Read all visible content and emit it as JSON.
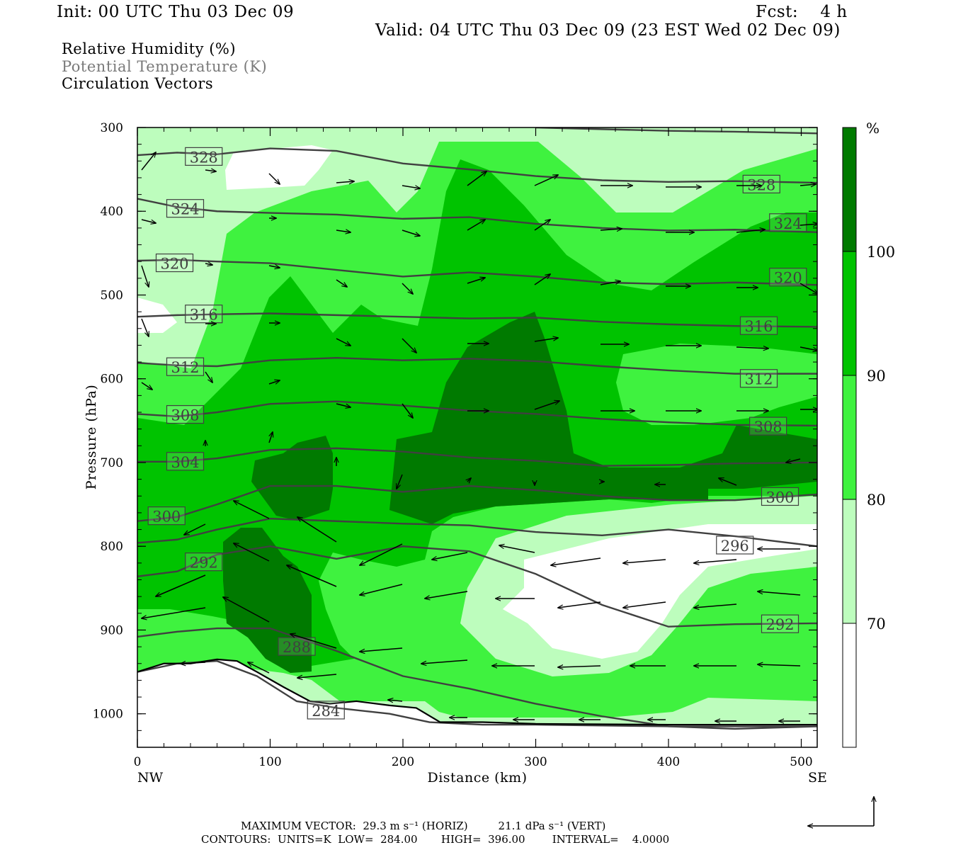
{
  "header": {
    "init": "Init: 00 UTC Thu 03 Dec 09",
    "fcst": "Fcst:    4 h",
    "valid": "Valid: 04 UTC Thu 03 Dec 09 (23 EST Wed 02 Dec 09)"
  },
  "legend": {
    "rh": "Relative Humidity (%)",
    "theta": "Potential Temperature (K)",
    "vectors": "Circulation Vectors"
  },
  "colors": {
    "rh_lt70": "#ffffff",
    "rh_70_80": "#bdfdbd",
    "rh_80_90": "#3ff23f",
    "rh_90_100": "#00c300",
    "rh_ge100": "#007a00",
    "theta_line": "#404040"
  },
  "chart_data": {
    "type": "cross-section",
    "xlabel": "Distance (km)",
    "ylabel": "Pressure (hPa)",
    "xlim": [
      0,
      512
    ],
    "ylim": [
      1040,
      300
    ],
    "x_ticks": [
      "0",
      "100",
      "200",
      "300",
      "400",
      "500"
    ],
    "y_ticks": [
      "300",
      "400",
      "500",
      "600",
      "700",
      "800",
      "900",
      "1000"
    ],
    "x_end_left": "NW",
    "x_end_right": "SE",
    "colorbar": {
      "unit": "%",
      "levels": [
        "70",
        "80",
        "90",
        "100"
      ]
    },
    "theta_contours": [
      {
        "label": "328",
        "x": [
          0,
          30,
          60,
          100,
          150,
          200,
          250,
          300,
          350,
          400,
          450,
          512
        ],
        "p": [
          333,
          330,
          332,
          325,
          328,
          343,
          350,
          358,
          363,
          365,
          364,
          366
        ],
        "label_at": [
          50,
          335
        ]
      },
      {
        "label": "328",
        "x": [
          300,
          350,
          400,
          450,
          512
        ],
        "p": [
          300,
          302,
          304,
          305,
          307
        ],
        "label_at": [
          470,
          368
        ]
      },
      {
        "label": "324",
        "x": [
          0,
          30,
          60,
          100,
          150,
          200,
          250,
          300,
          350,
          400,
          450,
          512
        ],
        "p": [
          385,
          395,
          400,
          402,
          404,
          409,
          407,
          415,
          420,
          423,
          422,
          425
        ],
        "label_at": [
          36,
          397
        ]
      },
      {
        "label": "324",
        "x": [],
        "p": [],
        "label_at": [
          490,
          414
        ]
      },
      {
        "label": "320",
        "x": [
          0,
          30,
          60,
          100,
          150,
          200,
          250,
          300,
          350,
          400,
          450,
          512
        ],
        "p": [
          459,
          458,
          460,
          462,
          470,
          478,
          473,
          478,
          485,
          487,
          485,
          488
        ],
        "label_at": [
          28,
          462
        ]
      },
      {
        "label": "320",
        "x": [],
        "p": [],
        "label_at": [
          490,
          479
        ]
      },
      {
        "label": "316",
        "x": [
          0,
          30,
          60,
          100,
          150,
          200,
          250,
          300,
          350,
          400,
          450,
          512
        ],
        "p": [
          526,
          524,
          523,
          522,
          524,
          526,
          528,
          527,
          532,
          535,
          537,
          538
        ],
        "label_at": [
          50,
          523
        ]
      },
      {
        "label": "316",
        "x": [],
        "p": [],
        "label_at": [
          468,
          537
        ]
      },
      {
        "label": "312",
        "x": [
          0,
          30,
          60,
          100,
          150,
          200,
          250,
          300,
          350,
          400,
          450,
          512
        ],
        "p": [
          581,
          584,
          585,
          578,
          575,
          578,
          576,
          579,
          585,
          590,
          594,
          594
        ],
        "label_at": [
          36,
          586
        ]
      },
      {
        "label": "312",
        "x": [],
        "p": [],
        "label_at": [
          468,
          600
        ]
      },
      {
        "label": "308",
        "x": [
          0,
          30,
          60,
          100,
          150,
          200,
          250,
          300,
          350,
          400,
          450,
          512
        ],
        "p": [
          642,
          645,
          640,
          630,
          627,
          632,
          638,
          642,
          648,
          652,
          655,
          656
        ],
        "label_at": [
          36,
          643
        ]
      },
      {
        "label": "308",
        "x": [],
        "p": [],
        "label_at": [
          475,
          657
        ]
      },
      {
        "label": "304",
        "x": [
          0,
          30,
          60,
          100,
          150,
          200,
          250,
          300,
          350,
          400,
          450,
          512
        ],
        "p": [
          699,
          699,
          695,
          685,
          683,
          687,
          694,
          698,
          704,
          703,
          701,
          700
        ],
        "label_at": [
          36,
          699
        ]
      },
      {
        "label": "300",
        "x": [
          0,
          30,
          60,
          100,
          150,
          200,
          250,
          300,
          350,
          400,
          450,
          512
        ],
        "p": [
          770,
          765,
          750,
          728,
          728,
          735,
          728,
          733,
          740,
          745,
          745,
          738
        ],
        "label_at": [
          22,
          764
        ]
      },
      {
        "label": "300",
        "x": [],
        "p": [],
        "label_at": [
          484,
          741
        ]
      },
      {
        "label": "296",
        "x": [
          0,
          30,
          60,
          100,
          150,
          200,
          250,
          300,
          350,
          400,
          450,
          512
        ],
        "p": [
          796,
          792,
          780,
          767,
          770,
          773,
          775,
          783,
          787,
          780,
          788,
          800
        ],
        "label_at": [
          450,
          799
        ]
      },
      {
        "label": "292",
        "x": [
          0,
          30,
          60,
          100,
          150,
          200,
          250,
          300,
          350,
          400,
          450,
          512
        ],
        "p": [
          836,
          830,
          810,
          800,
          815,
          800,
          806,
          833,
          870,
          896,
          893,
          892
        ],
        "label_at": [
          50,
          819
        ]
      },
      {
        "label": "292",
        "x": [],
        "p": [],
        "label_at": [
          484,
          893
        ]
      },
      {
        "label": "288",
        "x": [
          0,
          30,
          60,
          100,
          150,
          200,
          250,
          300,
          350,
          400,
          450,
          512
        ],
        "p": [
          908,
          902,
          898,
          898,
          925,
          955,
          970,
          988,
          1003,
          1015,
          1018,
          1015
        ],
        "label_at": [
          120,
          920
        ]
      },
      {
        "label": "284",
        "x": [
          0,
          30,
          60,
          90,
          120,
          150,
          190,
          220,
          260,
          300,
          400,
          512
        ],
        "p": [
          950,
          940,
          937,
          955,
          985,
          993,
          1000,
          1010,
          1013,
          1013,
          1015,
          1015
        ],
        "label_at": [
          142,
          996
        ]
      }
    ],
    "terrain_p": [
      [
        0,
        950
      ],
      [
        20,
        940
      ],
      [
        40,
        940
      ],
      [
        60,
        935
      ],
      [
        75,
        937
      ],
      [
        90,
        950
      ],
      [
        110,
        968
      ],
      [
        130,
        985
      ],
      [
        145,
        988
      ],
      [
        165,
        985
      ],
      [
        190,
        990
      ],
      [
        210,
        993
      ],
      [
        228,
        1010
      ],
      [
        260,
        1010
      ],
      [
        300,
        1012
      ],
      [
        400,
        1013
      ],
      [
        512,
        1013
      ]
    ],
    "maximum_vector": "MAXIMUM VECTOR:  29.3 m s⁻¹ (HORIZ)         21.1 dPa s⁻¹ (VERT)",
    "contours_note": "CONTOURS:  UNITS=K  LOW=  284.00       HIGH=  396.00        INTERVAL=    4.0000"
  }
}
